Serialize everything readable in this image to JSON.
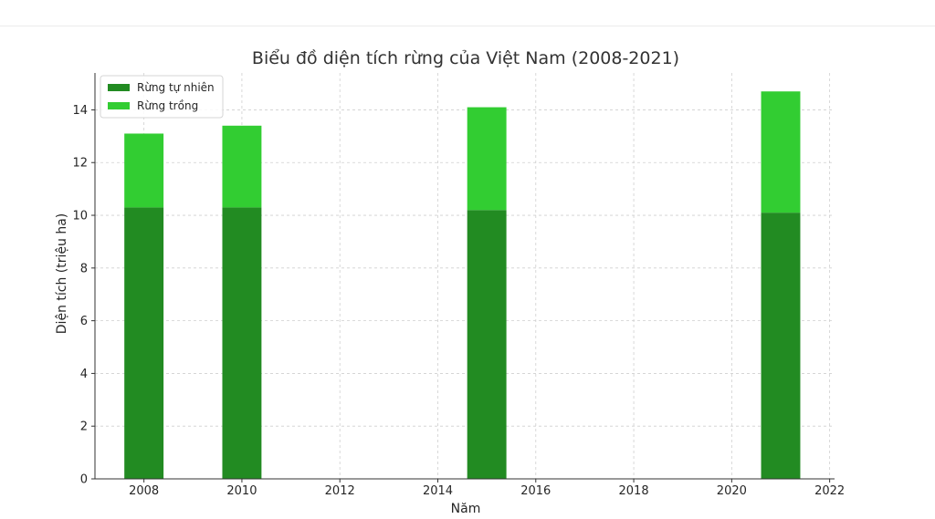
{
  "chart_data": {
    "type": "bar",
    "stacked": true,
    "title": "Biểu đồ diện tích rừng của Việt Nam (2008-2021)",
    "xlabel": "Năm",
    "ylabel": "Diện tích (triệu ha)",
    "x": [
      2008,
      2010,
      2015,
      2021
    ],
    "xlim": [
      2007,
      2022.1
    ],
    "xticks": [
      2008,
      2010,
      2012,
      2014,
      2016,
      2018,
      2020,
      2022
    ],
    "ylim": [
      0,
      15.4
    ],
    "yticks": [
      0,
      2,
      4,
      6,
      8,
      10,
      12,
      14
    ],
    "grid": true,
    "legend_position": "upper-left",
    "series": [
      {
        "name": "Rừng tự nhiên",
        "color": "#228b22",
        "values": [
          10.3,
          10.3,
          10.2,
          10.1
        ]
      },
      {
        "name": "Rừng trồng",
        "color": "#32cd32",
        "values": [
          2.8,
          3.1,
          3.9,
          4.6
        ]
      }
    ]
  }
}
